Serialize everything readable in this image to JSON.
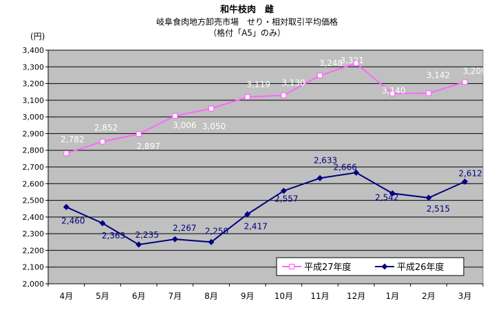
{
  "title": "和牛枝肉　雌",
  "subtitle": "岐阜食肉地方卸売市場　せり・相対取引平均価格",
  "subtitle2": "（格付「A5」のみ）",
  "chart_data": {
    "type": "line",
    "title": "和牛枝肉　雌",
    "ylabel": "(円)",
    "categories": [
      "4月",
      "5月",
      "6月",
      "7月",
      "8月",
      "9月",
      "10月",
      "11月",
      "12月",
      "1月",
      "2月",
      "3月"
    ],
    "ylim": [
      2000,
      3400
    ],
    "yticks": [
      "2,000",
      "2,100",
      "2,200",
      "2,300",
      "2,400",
      "2,500",
      "2,600",
      "2,700",
      "2,800",
      "2,900",
      "3,000",
      "3,100",
      "3,200",
      "3,300",
      "3,400"
    ],
    "grid": true,
    "legend": "bottom-right",
    "series": [
      {
        "name": "平成27年度",
        "color": "#ff66ff",
        "marker": "square-open",
        "values": [
          2782,
          2852,
          2897,
          3006,
          3050,
          3119,
          3130,
          3248,
          3321,
          3140,
          3142,
          3209
        ],
        "labels": [
          "2,782",
          "2,852",
          "2,897",
          "3,006",
          "3,050",
          "3,119",
          "3,130",
          "3,248",
          "3,321",
          "3,140",
          "3,142",
          "3,209"
        ]
      },
      {
        "name": "平成26年度",
        "color": "#000080",
        "marker": "diamond-filled",
        "values": [
          2460,
          2363,
          2235,
          2267,
          2250,
          2417,
          2557,
          2633,
          2666,
          2542,
          2515,
          2612
        ],
        "labels": [
          "2,460",
          "2,363",
          "2,235",
          "2,267",
          "2,250",
          "2,417",
          "2,557",
          "2,633",
          "2,666",
          "2,542",
          "2,515",
          "2,612"
        ]
      }
    ]
  }
}
